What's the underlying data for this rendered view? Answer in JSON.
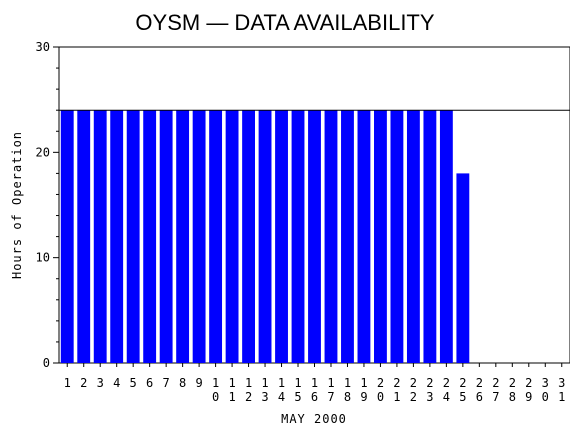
{
  "chart_data": {
    "type": "bar",
    "title": "OYSM — DATA AVAILABILITY",
    "xlabel": "MAY 2000",
    "ylabel": "Hours of Operation",
    "ylim": [
      0,
      30
    ],
    "yticks": [
      0,
      10,
      20,
      30
    ],
    "y_minor_step": 2,
    "reference_line": 24,
    "bar_color": "#0000ff",
    "grid": false,
    "categories": [
      "1",
      "2",
      "3",
      "4",
      "5",
      "6",
      "7",
      "8",
      "9",
      "10",
      "11",
      "12",
      "13",
      "14",
      "15",
      "16",
      "17",
      "18",
      "19",
      "20",
      "21",
      "22",
      "23",
      "24",
      "25",
      "26",
      "27",
      "28",
      "29",
      "30",
      "31"
    ],
    "values": [
      24,
      24,
      24,
      24,
      24,
      24,
      24,
      24,
      24,
      24,
      24,
      24,
      24,
      24,
      24,
      24,
      24,
      24,
      24,
      24,
      24,
      24,
      24,
      24,
      18,
      0,
      0,
      0,
      0,
      0,
      0
    ]
  }
}
